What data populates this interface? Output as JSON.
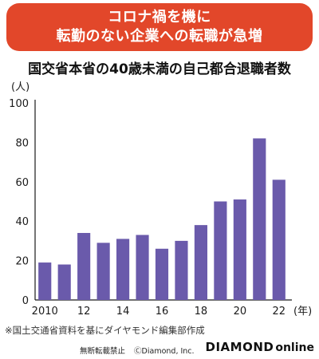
{
  "banner": {
    "line1": "コロナ禍を機に",
    "line2": "転勤のない企業への転職が急増"
  },
  "colors": {
    "banner": "#e2472a",
    "bar": "#6a5aab"
  },
  "chart_data": {
    "type": "bar",
    "title": "国交省本省の40歳未満の自己都合退職者数",
    "ylabel": "(人)",
    "xlabel": "(年)",
    "ylim": [
      0,
      100
    ],
    "yticks": [
      0,
      20,
      40,
      60,
      80,
      100
    ],
    "categories": [
      "2010",
      "11",
      "12",
      "13",
      "14",
      "15",
      "16",
      "17",
      "18",
      "19",
      "20",
      "21",
      "22"
    ],
    "xtick_labels": [
      "2010",
      "",
      "12",
      "",
      "14",
      "",
      "16",
      "",
      "18",
      "",
      "20",
      "",
      "22"
    ],
    "values": [
      19,
      18,
      34,
      29,
      31,
      33,
      26,
      30,
      38,
      50,
      51,
      82,
      61
    ],
    "grid": false
  },
  "source_note": "※国土交通省資料を基にダイヤモンド編集部作成",
  "footer": {
    "notice": "無断転載禁止",
    "copyright": "ⒸDiamond, Inc.",
    "logo_main": "DIAMOND",
    "logo_sub": "online"
  }
}
